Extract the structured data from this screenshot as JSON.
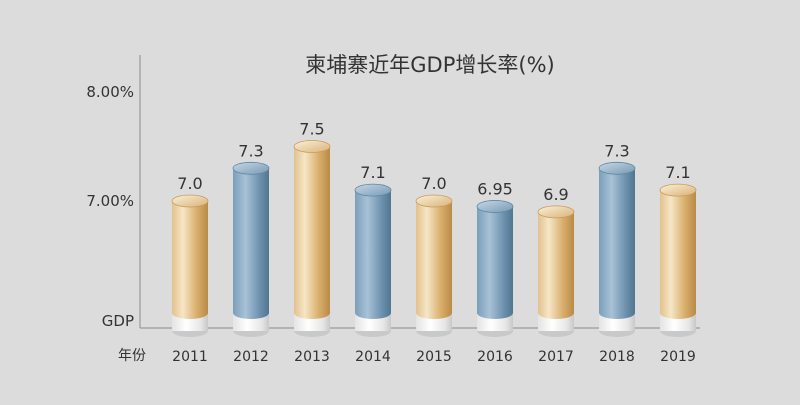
{
  "chart_data": {
    "type": "bar",
    "title": "柬埔寨近年GDP增长率(%)",
    "ylabel": "GDP",
    "xlabel": "年份",
    "y_ticks": [
      "8.00%",
      "7.00%"
    ],
    "categories": [
      "2011",
      "2012",
      "2013",
      "2014",
      "2015",
      "2016",
      "2017",
      "2018",
      "2019"
    ],
    "values": [
      7.0,
      7.3,
      7.5,
      7.1,
      7.0,
      6.95,
      6.9,
      7.3,
      7.1
    ],
    "value_labels": [
      "7.0",
      "7.3",
      "7.5",
      "7.1",
      "7.0",
      "6.95",
      "6.9",
      "7.3",
      "7.1"
    ],
    "bar_styles": [
      "gold",
      "blue",
      "gold",
      "blue",
      "gold",
      "blue",
      "gold",
      "blue",
      "gold"
    ],
    "ylim": [
      5.85,
      8.0
    ],
    "grid": false,
    "legend": "none"
  },
  "colors": {
    "background": "#dcdcdc",
    "gold_dark": "#b98a48",
    "gold_light": "#f3dfba",
    "blue_dark": "#5c84a2",
    "blue_light": "#a8c2d6",
    "axis": "#999999",
    "text": "#333333"
  }
}
